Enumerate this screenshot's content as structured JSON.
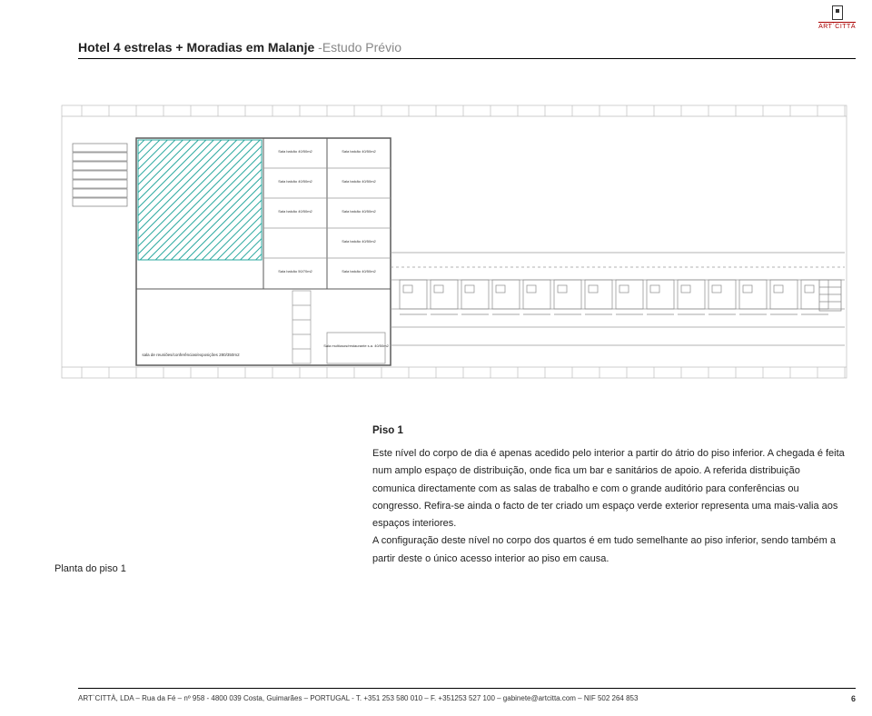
{
  "logo": {
    "brand": "ART`CITTÀ"
  },
  "title": {
    "main": "Hotel 4 estrelas + Moradias em Malanje ",
    "sub": "-Estudo Prévio"
  },
  "plan": {
    "room_labels": [
      "Sala balcão 40/50m2",
      "Sala balcão 40/50m2",
      "Sala balcão 40/50m2",
      "Sala balcão 40/50m2",
      "Sala balcão 40/50m2",
      "Sala balcão 40/50m2",
      "",
      "Sala balcão 40/50m2",
      "Sala balcão 50/70m2",
      "Sala balcão 40/50m2"
    ],
    "bottom_label_1": "sala de reuniões/conferências/exposições 280/350m2",
    "bottom_label_2": "Sala multiusos/restaurante s.a. 40/50m2",
    "colors": {
      "bg": "#ffffff",
      "wall": "#5a5a5a",
      "wall_light": "#9a9a9a",
      "hatch": "#2aa89f",
      "grid": "#cfcfcf",
      "unit": "#cfcfcf"
    }
  },
  "text": {
    "heading": "Piso 1",
    "p1": "Este nível do corpo de dia é apenas acedido pelo interior a partir do átrio do piso inferior. A chegada é feita num amplo espaço de distribuição, onde fica um bar e sanitários de apoio. A referida distribuição comunica directamente com as salas de trabalho e com o grande auditório para conferências ou congresso. Refira-se ainda o facto de ter criado um espaço verde exterior representa uma mais-valia aos espaços interiores.",
    "p2": "A configuração deste nível no corpo dos quartos é em tudo semelhante ao piso inferior, sendo também a partir deste o único acesso interior ao piso em causa.",
    "caption": "Planta do piso 1"
  },
  "footer": {
    "line": "ART`CITTÀ, LDA  –  Rua da Fé – nº 958  - 4800 039 Costa, Guimarães  –  PORTUGAL   - T. +351 253 580 010  –  F. +351253 527 100  –  gabinete@artcitta.com  –  NIF 502 264 853",
    "page": "6"
  }
}
